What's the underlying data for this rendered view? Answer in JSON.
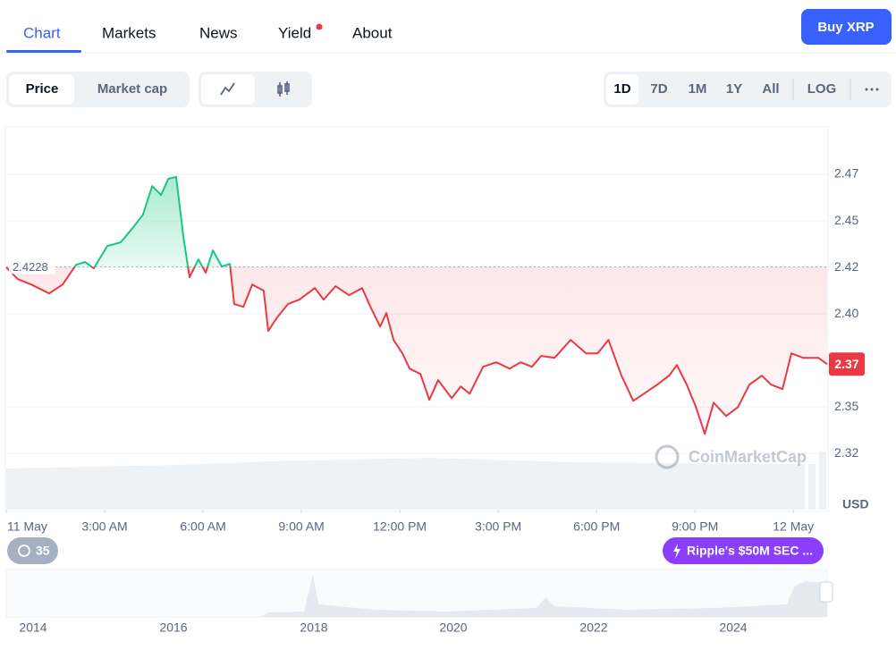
{
  "nav": {
    "tabs": [
      "Chart",
      "Markets",
      "News",
      "Yield",
      "About"
    ],
    "button": "Buy XRP"
  },
  "toolbar": {
    "metrics": [
      "Price",
      "Market cap"
    ],
    "ranges": [
      "1D",
      "7D",
      "1M",
      "1Y",
      "All",
      "LOG"
    ]
  },
  "chart_data": {
    "type": "line",
    "x": [
      0,
      0.35,
      0.76,
      1.31,
      1.72,
      2.13,
      2.4,
      2.67,
      3.08,
      3.49,
      3.85,
      4.17,
      4.45,
      4.72,
      4.94,
      5.18,
      5.4,
      5.59,
      5.86,
      6.08,
      6.3,
      6.57,
      6.82,
      6.95,
      7.23,
      7.5,
      7.85,
      7.99,
      8.26,
      8.59,
      8.94,
      9.41,
      9.68,
      10.04,
      10.45,
      10.85,
      11.13,
      11.4,
      11.59,
      11.81,
      12.08,
      12.3,
      12.63,
      12.9,
      13.17,
      13.58,
      13.86,
      14.13,
      14.54,
      14.94,
      15.35,
      15.68,
      16.03,
      16.31,
      16.72,
      17.21,
      17.68,
      18.03,
      18.36,
      18.76,
      19.12,
      19.44,
      19.85,
      20.21,
      20.45,
      20.75,
      21.03,
      21.3,
      21.57,
      21.95,
      22.31,
      22.66,
      23.04,
      23.32,
      23.67,
      23.94,
      24.3,
      24.76,
      25.03
    ],
    "values": [
      2.4225,
      2.4162,
      2.4133,
      2.4085,
      2.4133,
      2.4239,
      2.4254,
      2.422,
      2.434,
      2.436,
      2.4436,
      2.4509,
      2.4662,
      2.4614,
      2.4701,
      2.4711,
      2.4388,
      2.4172,
      2.4268,
      2.4196,
      2.4316,
      2.4229,
      2.4244,
      2.4028,
      2.4013,
      2.4133,
      2.41,
      2.3883,
      2.3956,
      2.4028,
      2.4052,
      2.4114,
      2.4052,
      2.4124,
      2.4076,
      2.4114,
      2.4004,
      2.3907,
      2.398,
      2.3835,
      2.3763,
      2.3681,
      2.3652,
      2.3513,
      2.3619,
      2.3522,
      2.3585,
      2.3546,
      2.3691,
      2.3715,
      2.3681,
      2.3715,
      2.3691,
      2.3749,
      2.3739,
      2.3835,
      2.3763,
      2.3763,
      2.3835,
      2.3643,
      2.3508,
      2.3546,
      2.3595,
      2.3643,
      2.37,
      2.3595,
      2.3474,
      2.333,
      2.3498,
      2.3426,
      2.3474,
      2.3595,
      2.3643,
      2.3595,
      2.3571,
      2.3763,
      2.3739,
      2.3739,
      2.3705
    ],
    "up_color": "#16c784",
    "down_color": "#ea3943",
    "reference": 2.4228,
    "current_price": {
      "value": 2.3705,
      "label": "2.37"
    },
    "xlim": [
      0,
      25.03
    ],
    "xticks": [
      {
        "value": 0,
        "label": "11 May"
      },
      {
        "value": 3,
        "label": "3:00 AM"
      },
      {
        "value": 6,
        "label": "6:00 AM"
      },
      {
        "value": 9,
        "label": "9:00 AM"
      },
      {
        "value": 12,
        "label": "12:00 PM"
      },
      {
        "value": 15,
        "label": "3:00 PM"
      },
      {
        "value": 18,
        "label": "6:00 PM"
      },
      {
        "value": 21,
        "label": "9:00 PM"
      },
      {
        "value": 24,
        "label": "12 May"
      }
    ],
    "ylim": [
      2.3,
      2.4975
    ],
    "yticks": [
      {
        "value": 2.3225,
        "label": "2.32"
      },
      {
        "value": 2.3475,
        "label": "2.35"
      },
      {
        "value": 2.3975,
        "label": "2.40"
      },
      {
        "value": 2.4225,
        "label": "2.42"
      },
      {
        "value": 2.4475,
        "label": "2.45"
      },
      {
        "value": 2.4725,
        "label": "2.47"
      }
    ],
    "y_unit": "USD",
    "grid": true
  },
  "watermark": "CoinMarketCap",
  "events": {
    "count": "35",
    "latest": "Ripple's $50M SEC ..."
  },
  "navigator": {
    "years": [
      "2014",
      "2016",
      "2018",
      "2020",
      "2022",
      "2024"
    ]
  }
}
